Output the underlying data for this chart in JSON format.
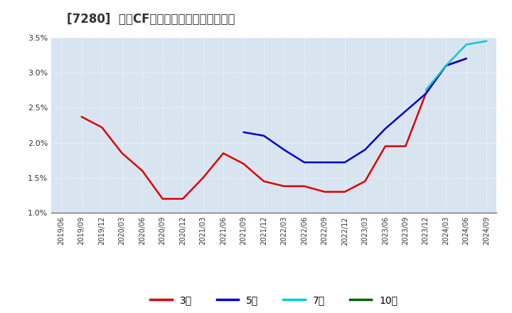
{
  "title": "[7280]  営業CFマージンの標準偏差の推移",
  "title_fontsize": 12,
  "fig_background_color": "#ffffff",
  "plot_background_color": "#d8e4f0",
  "ylim": [
    0.01,
    0.035
  ],
  "yticks": [
    0.01,
    0.015,
    0.02,
    0.025,
    0.03,
    0.035
  ],
  "ytick_labels": [
    "1.0%",
    "1.5%",
    "2.0%",
    "2.5%",
    "3.0%",
    "3.5%"
  ],
  "series": {
    "3年": {
      "color": "#dd0000",
      "dates": [
        "2019/09",
        "2019/12",
        "2020/03",
        "2020/06",
        "2020/09",
        "2020/12",
        "2021/03",
        "2021/06",
        "2021/09",
        "2021/12",
        "2022/03",
        "2022/06",
        "2022/09",
        "2022/12",
        "2023/03",
        "2023/06",
        "2023/09",
        "2023/12",
        "2024/03",
        "2024/06"
      ],
      "values": [
        0.0237,
        0.0222,
        0.0185,
        0.016,
        0.012,
        0.012,
        0.015,
        0.0185,
        0.017,
        0.0145,
        0.0138,
        0.0138,
        0.013,
        0.013,
        0.0145,
        0.0195,
        0.0195,
        0.027,
        0.031,
        0.032
      ]
    },
    "5年": {
      "color": "#0000cc",
      "dates": [
        "2021/09",
        "2021/12",
        "2022/03",
        "2022/06",
        "2022/09",
        "2022/12",
        "2023/03",
        "2023/06",
        "2023/09",
        "2023/12",
        "2024/03",
        "2024/06"
      ],
      "values": [
        0.0215,
        0.021,
        0.019,
        0.0172,
        0.0172,
        0.0172,
        0.019,
        0.022,
        0.0245,
        0.027,
        0.031,
        0.032
      ]
    },
    "7年": {
      "color": "#00cccc",
      "dates": [
        "2023/12",
        "2024/03",
        "2024/06",
        "2024/09"
      ],
      "values": [
        0.0275,
        0.031,
        0.034,
        0.0345
      ]
    },
    "10年": {
      "color": "#006600",
      "dates": [],
      "values": []
    }
  },
  "legend_labels": [
    "3年",
    "5年",
    "7年",
    "10年"
  ],
  "legend_colors": [
    "#dd0000",
    "#0000cc",
    "#00cccc",
    "#006600"
  ],
  "xticklabels": [
    "2019/06",
    "2019/09",
    "2019/12",
    "2020/03",
    "2020/06",
    "2020/09",
    "2020/12",
    "2021/03",
    "2021/06",
    "2021/09",
    "2021/12",
    "2022/03",
    "2022/06",
    "2022/09",
    "2022/12",
    "2023/03",
    "2023/06",
    "2023/09",
    "2023/12",
    "2024/03",
    "2024/06",
    "2024/09"
  ]
}
